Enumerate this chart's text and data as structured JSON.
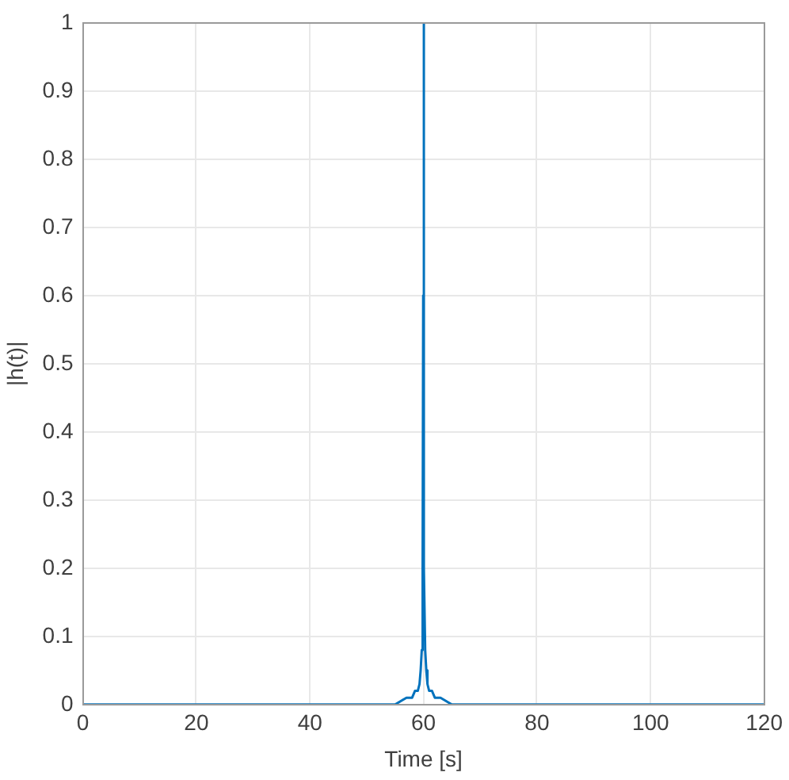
{
  "chart_data": {
    "type": "line",
    "xlabel": "Time [s]",
    "ylabel": "|h(t)|",
    "x": [
      0,
      10,
      20,
      30,
      40,
      50,
      55,
      57,
      58,
      58.5,
      59,
      59.3,
      59.5,
      59.7,
      59.85,
      59.95,
      60,
      60.05,
      60.15,
      60.3,
      60.5,
      60.7,
      61,
      61.5,
      62,
      63,
      65,
      70,
      80,
      90,
      100,
      110,
      120
    ],
    "values": [
      0,
      0,
      0,
      0,
      0,
      0,
      0,
      0.01,
      0.01,
      0.02,
      0.02,
      0.03,
      0.05,
      0.08,
      0.2,
      0.6,
      1,
      0.6,
      0.2,
      0.08,
      0.05,
      0.03,
      0.02,
      0.02,
      0.01,
      0.01,
      0,
      0,
      0,
      0,
      0,
      0,
      0
    ],
    "color": "#0072bd",
    "xlim": [
      0,
      120
    ],
    "ylim": [
      0,
      1
    ],
    "xticks": [
      0,
      20,
      40,
      60,
      80,
      100,
      120
    ],
    "yticks": [
      0,
      0.1,
      0.2,
      0.3,
      0.4,
      0.5,
      0.6,
      0.7,
      0.8,
      0.9,
      1
    ],
    "grid": true
  }
}
